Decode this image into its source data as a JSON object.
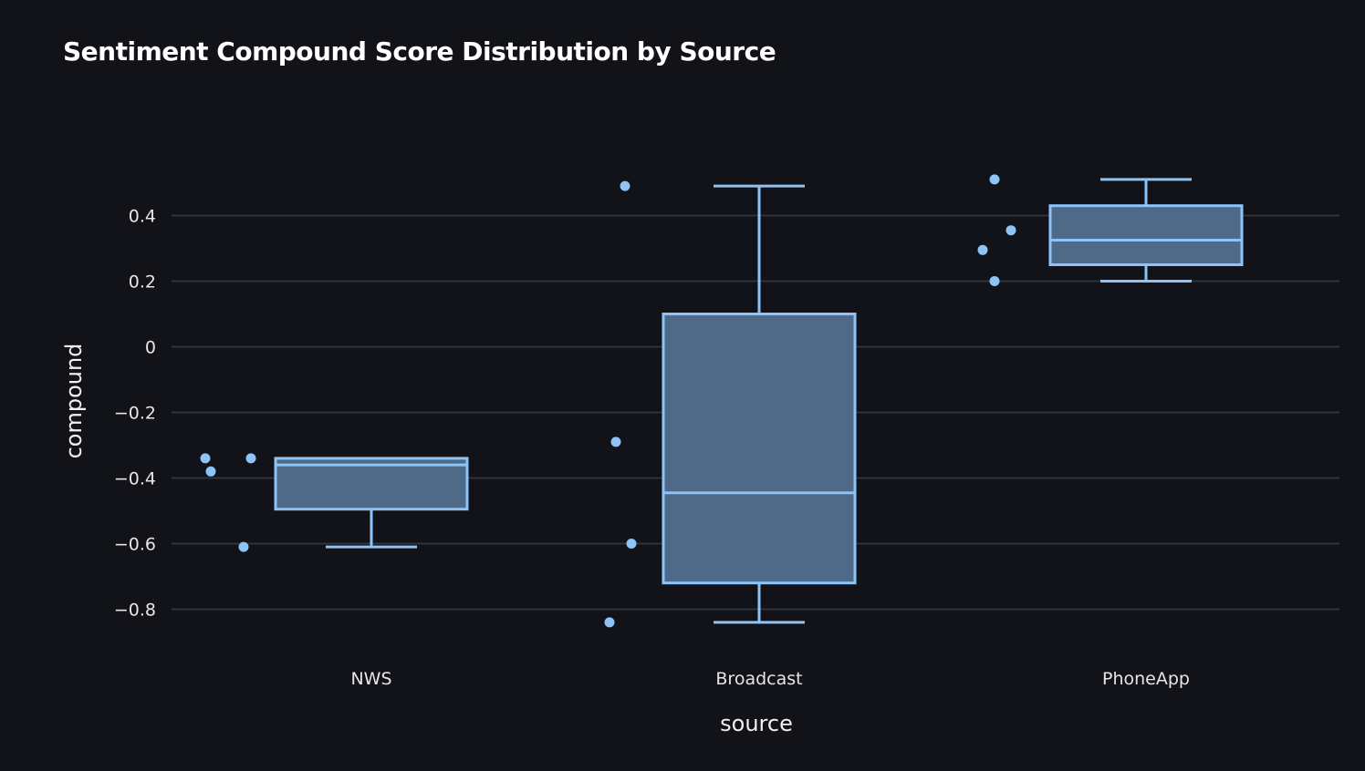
{
  "chart_data": {
    "type": "box",
    "title": "Sentiment Compound Score Distribution by Source",
    "xlabel": "source",
    "ylabel": "compound",
    "categories": [
      "NWS",
      "Broadcast",
      "PhoneApp"
    ],
    "ylim": [
      -0.9,
      0.55
    ],
    "yticks": [
      0.4,
      0.2,
      0,
      -0.2,
      -0.4,
      -0.6,
      -0.8
    ],
    "ytick_labels": [
      "0.4",
      "0.2",
      "0",
      "−0.2",
      "−0.4",
      "−0.6",
      "−0.8"
    ],
    "grid": true,
    "boxes": [
      {
        "category": "NWS",
        "min": -0.61,
        "q1": -0.495,
        "median": -0.36,
        "q3": -0.34,
        "max": -0.34,
        "points": [
          -0.34,
          -0.38,
          -0.34,
          -0.61
        ]
      },
      {
        "category": "Broadcast",
        "min": -0.84,
        "q1": -0.72,
        "median": -0.445,
        "q3": 0.1,
        "max": 0.49,
        "points": [
          0.49,
          -0.29,
          -0.6,
          -0.84
        ]
      },
      {
        "category": "PhoneApp",
        "min": 0.2,
        "q1": 0.25,
        "median": 0.325,
        "q3": 0.43,
        "max": 0.51,
        "points": [
          0.51,
          0.355,
          0.295,
          0.2
        ]
      }
    ],
    "colors": {
      "box_fill": "#4f6a88",
      "box_line": "#8cc4f8",
      "point": "#8cc4f8",
      "grid": "#30333a",
      "background": "#111318"
    }
  }
}
